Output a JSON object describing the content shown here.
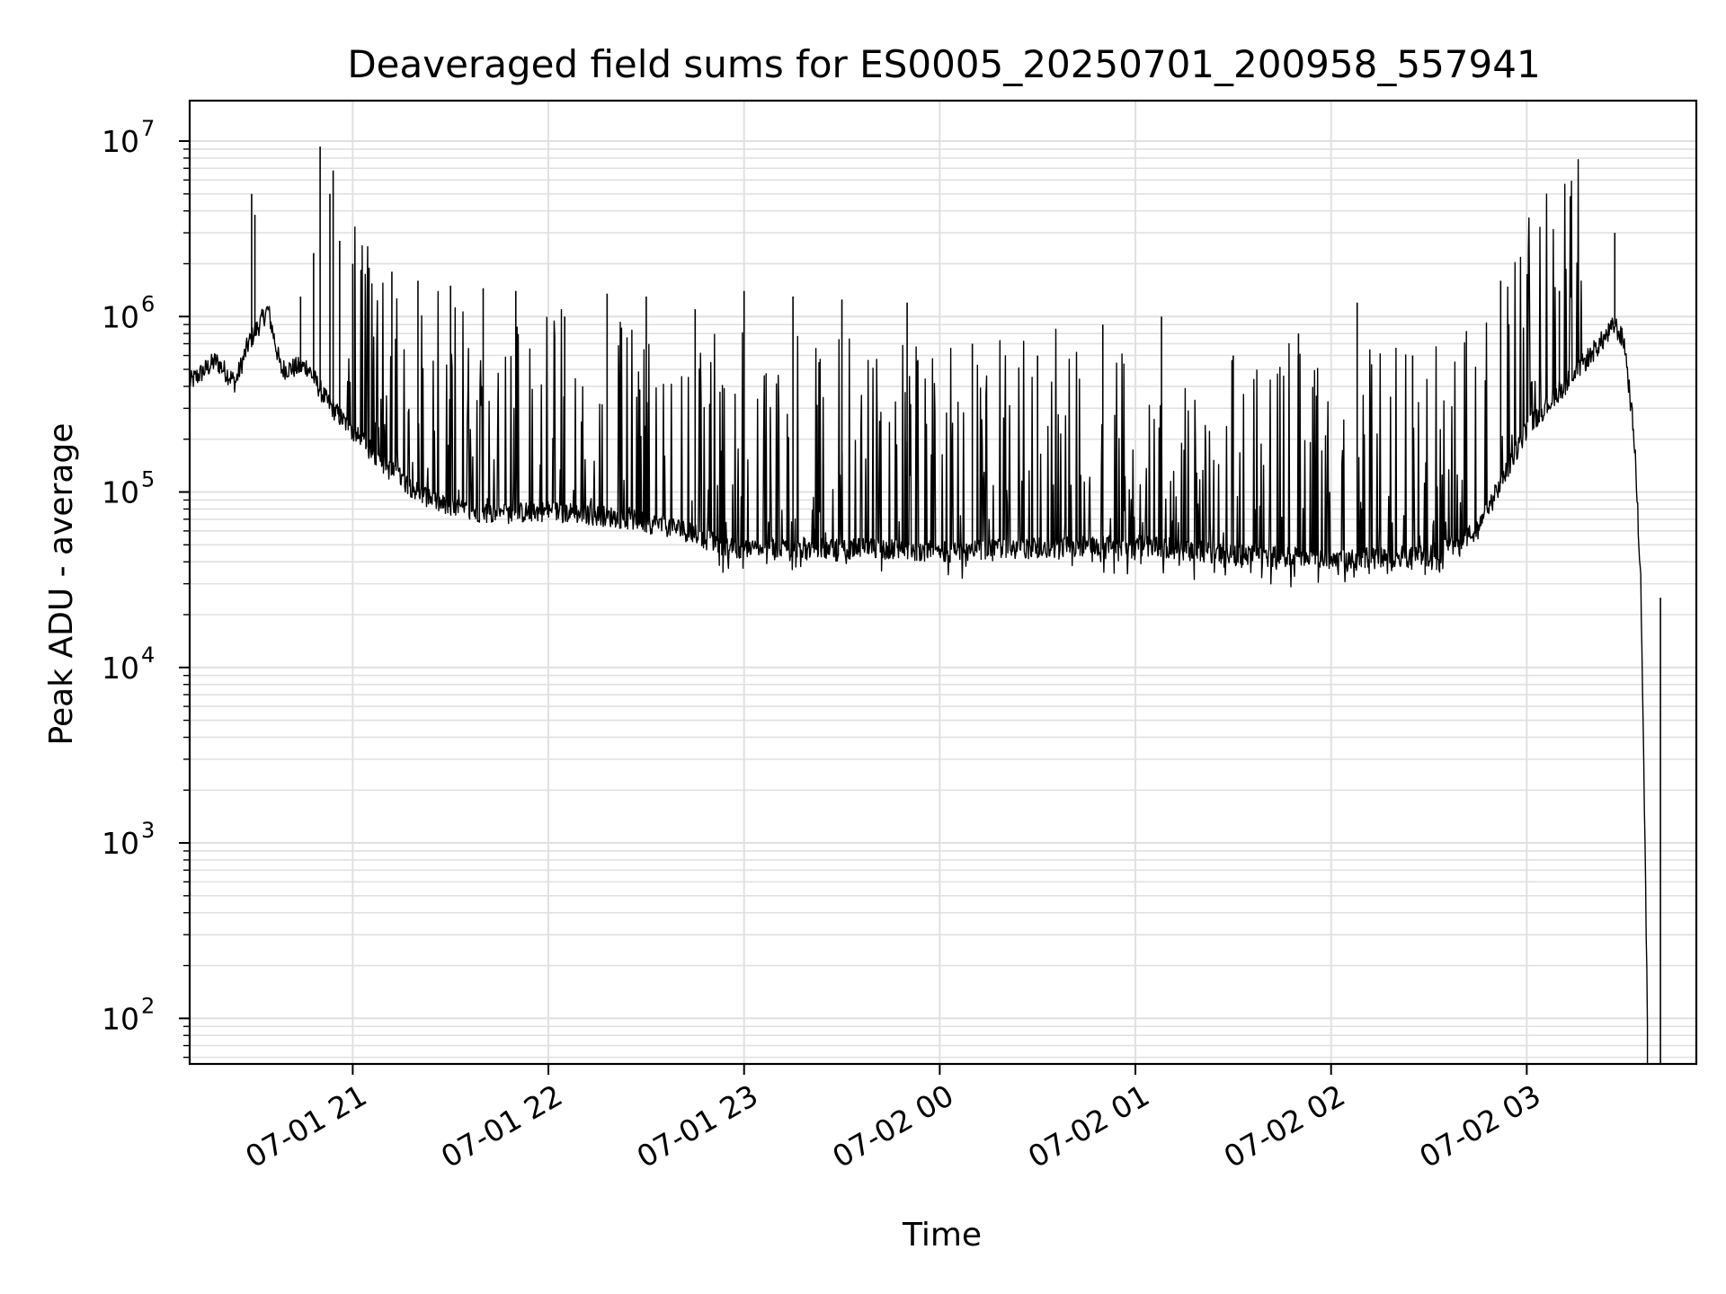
{
  "chart_data": {
    "type": "line",
    "title": "Deaveraged field sums for ES0005_20250701_200958_557941",
    "xlabel": "Time",
    "ylabel": "Peak ADU - average",
    "yscale": "log",
    "ylim": [
      55,
      17000000
    ],
    "xlim": [
      "2025-07-01 20:10",
      "2025-07-02 03:52"
    ],
    "grid": true,
    "line_color": "#000000",
    "grid_color": "#e0e0e0",
    "x_ticks": [
      {
        "value": "2025-07-01 21:00",
        "label": "07-01 21"
      },
      {
        "value": "2025-07-01 22:00",
        "label": "07-01 22"
      },
      {
        "value": "2025-07-01 23:00",
        "label": "07-01 23"
      },
      {
        "value": "2025-07-02 00:00",
        "label": "07-02 00"
      },
      {
        "value": "2025-07-02 01:00",
        "label": "07-02 01"
      },
      {
        "value": "2025-07-02 02:00",
        "label": "07-02 02"
      },
      {
        "value": "2025-07-02 03:00",
        "label": "07-02 03"
      }
    ],
    "y_ticks": [
      {
        "value": 100,
        "base": "10",
        "exp": "2"
      },
      {
        "value": 1000,
        "base": "10",
        "exp": "3"
      },
      {
        "value": 10000,
        "base": "10",
        "exp": "4"
      },
      {
        "value": 100000,
        "base": "10",
        "exp": "5"
      },
      {
        "value": 1000000,
        "base": "10",
        "exp": "6"
      },
      {
        "value": 10000000,
        "base": "10",
        "exp": "7"
      }
    ],
    "baseline": [
      {
        "x": "2025-07-01 20:10",
        "y": 420000
      },
      {
        "x": "2025-07-01 20:18",
        "y": 560000
      },
      {
        "x": "2025-07-01 20:24",
        "y": 420000
      },
      {
        "x": "2025-07-01 20:28",
        "y": 700000
      },
      {
        "x": "2025-07-01 20:34",
        "y": 1100000
      },
      {
        "x": "2025-07-01 20:38",
        "y": 500000
      },
      {
        "x": "2025-07-01 20:46",
        "y": 520000
      },
      {
        "x": "2025-07-01 20:52",
        "y": 330000
      },
      {
        "x": "2025-07-01 21:00",
        "y": 220000
      },
      {
        "x": "2025-07-01 21:10",
        "y": 140000
      },
      {
        "x": "2025-07-01 21:20",
        "y": 100000
      },
      {
        "x": "2025-07-01 21:30",
        "y": 80000
      },
      {
        "x": "2025-07-01 21:45",
        "y": 75000
      },
      {
        "x": "2025-07-01 22:00",
        "y": 78000
      },
      {
        "x": "2025-07-01 22:20",
        "y": 72000
      },
      {
        "x": "2025-07-01 22:40",
        "y": 62000
      },
      {
        "x": "2025-07-01 22:55",
        "y": 48000
      },
      {
        "x": "2025-07-01 23:30",
        "y": 48000
      },
      {
        "x": "2025-07-02 00:00",
        "y": 46000
      },
      {
        "x": "2025-07-02 00:30",
        "y": 48000
      },
      {
        "x": "2025-07-02 01:00",
        "y": 50000
      },
      {
        "x": "2025-07-02 01:30",
        "y": 44000
      },
      {
        "x": "2025-07-02 02:00",
        "y": 42000
      },
      {
        "x": "2025-07-02 02:30",
        "y": 43000
      },
      {
        "x": "2025-07-02 02:45",
        "y": 60000
      },
      {
        "x": "2025-07-02 03:00",
        "y": 230000
      },
      {
        "x": "2025-07-02 03:15",
        "y": 480000
      },
      {
        "x": "2025-07-02 03:25",
        "y": 800000
      },
      {
        "x": "2025-07-02 03:27",
        "y": 900000
      },
      {
        "x": "2025-07-02 03:30",
        "y": 700000
      },
      {
        "x": "2025-07-02 03:33",
        "y": 200000
      },
      {
        "x": "2025-07-02 03:35",
        "y": 30000
      },
      {
        "x": "2025-07-02 03:36",
        "y": 2000
      },
      {
        "x": "2025-07-02 03:37",
        "y": 100
      },
      {
        "x": "2025-07-02 03:37",
        "y": 55
      }
    ],
    "spikes": [
      {
        "x": "2025-07-01 20:29",
        "y": 5000000
      },
      {
        "x": "2025-07-01 20:30",
        "y": 3800000
      },
      {
        "x": "2025-07-01 20:44",
        "y": 1300000
      },
      {
        "x": "2025-07-01 20:48",
        "y": 2300000
      },
      {
        "x": "2025-07-01 20:50",
        "y": 9300000
      },
      {
        "x": "2025-07-01 20:53",
        "y": 5000000
      },
      {
        "x": "2025-07-01 20:54",
        "y": 6800000
      },
      {
        "x": "2025-07-01 20:56",
        "y": 2700000
      },
      {
        "x": "2025-07-01 21:00",
        "y": 2000000
      },
      {
        "x": "2025-07-01 21:05",
        "y": 1900000
      },
      {
        "x": "2025-07-01 21:12",
        "y": 1800000
      },
      {
        "x": "2025-07-01 21:20",
        "y": 1600000
      },
      {
        "x": "2025-07-01 21:30",
        "y": 1500000
      },
      {
        "x": "2025-07-01 21:40",
        "y": 1450000
      },
      {
        "x": "2025-07-01 21:50",
        "y": 1400000
      },
      {
        "x": "2025-07-01 22:05",
        "y": 1000000
      },
      {
        "x": "2025-07-01 22:18",
        "y": 1350000
      },
      {
        "x": "2025-07-01 22:30",
        "y": 1300000
      },
      {
        "x": "2025-07-01 22:45",
        "y": 1100000
      },
      {
        "x": "2025-07-01 23:00",
        "y": 1400000
      },
      {
        "x": "2025-07-01 23:15",
        "y": 1300000
      },
      {
        "x": "2025-07-01 23:30",
        "y": 1250000
      },
      {
        "x": "2025-07-01 23:50",
        "y": 1200000
      },
      {
        "x": "2025-07-02 00:10",
        "y": 700000
      },
      {
        "x": "2025-07-02 00:30",
        "y": 600000
      },
      {
        "x": "2025-07-02 00:50",
        "y": 900000
      },
      {
        "x": "2025-07-02 01:08",
        "y": 1000000
      },
      {
        "x": "2025-07-02 01:30",
        "y": 600000
      },
      {
        "x": "2025-07-02 01:50",
        "y": 800000
      },
      {
        "x": "2025-07-02 02:08",
        "y": 1200000
      },
      {
        "x": "2025-07-02 02:25",
        "y": 600000
      },
      {
        "x": "2025-07-02 02:52",
        "y": 1600000
      },
      {
        "x": "2025-07-02 03:10",
        "y": 1400000
      },
      {
        "x": "2025-07-02 03:27",
        "y": 3000000
      },
      {
        "x": "2025-07-02 03:41",
        "y": 25000
      }
    ]
  }
}
